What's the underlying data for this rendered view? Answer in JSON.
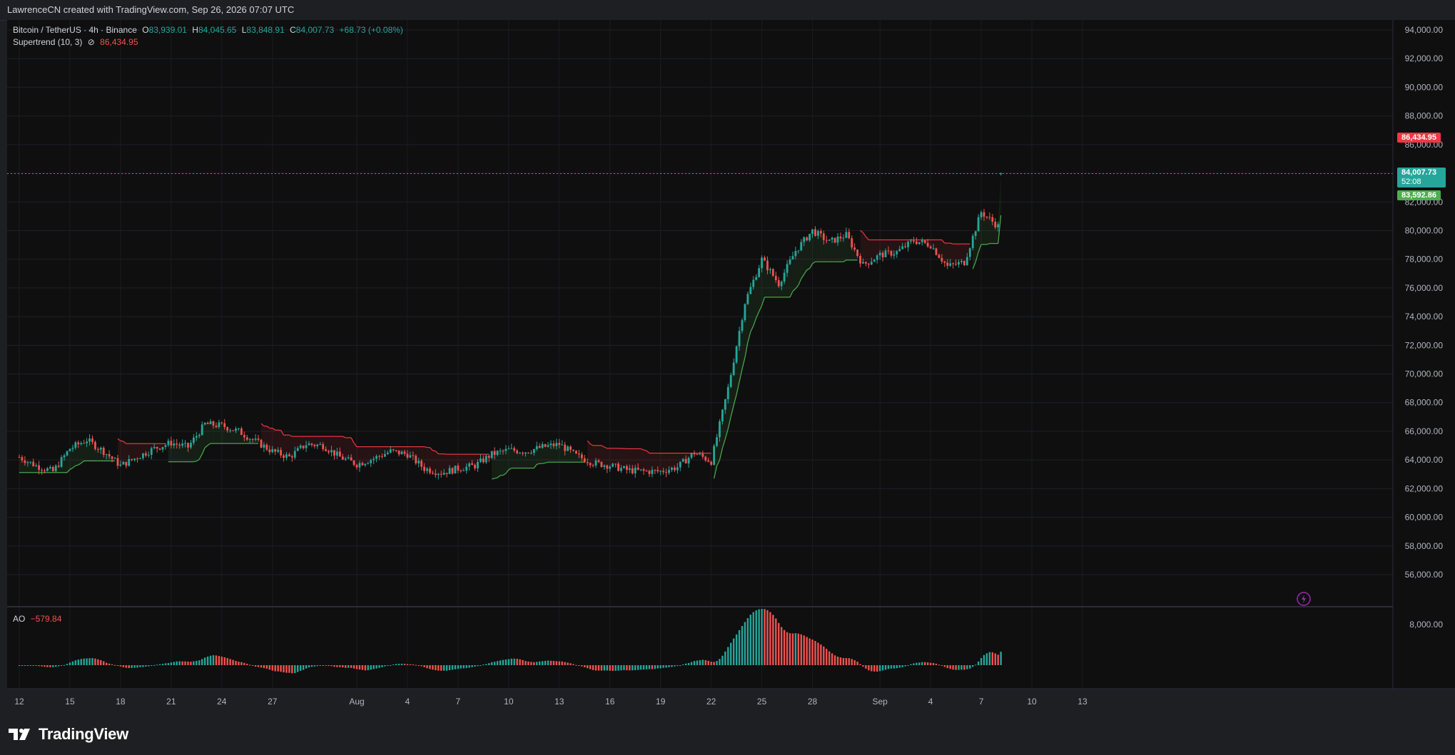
{
  "caption": "LawrenceCN created with TradingView.com, Sep 26, 2026 07:07 UTC",
  "legend": {
    "symbol": "Bitcoin / TetherUS · 4h · Binance",
    "o_label": "O",
    "o_value": "83,939.01",
    "h_label": "H",
    "h_value": "84,045.65",
    "l_label": "L",
    "l_value": "83,848.91",
    "c_label": "C",
    "c_value": "84,007.73",
    "change": "+68.73 (+0.08%)",
    "indicator": "Supertrend (10, 3)",
    "indicator_icon": "eye-off-icon",
    "indicator_value": "86,434.95"
  },
  "ao_legend": {
    "name": "AO",
    "value": "−579.84"
  },
  "price_tags": {
    "supertrend_upper": "86,434.95",
    "last_price": "84,007.73",
    "countdown": "52:08",
    "supertrend_lower": "83,592.86"
  },
  "brand": "TradingView",
  "colors": {
    "up": "#26a69a",
    "down": "#ef5350",
    "st_up": "#4caf50",
    "st_down": "#f23645",
    "background": "#0f0f0f"
  },
  "chart_data": {
    "type": "candlestick",
    "symbol": "Bitcoin / TetherUS",
    "interval": "4h",
    "exchange": "Binance",
    "y_ticks": [
      "94,000.00",
      "92,000.00",
      "90,000.00",
      "88,000.00",
      "86,000.00",
      "84,000.00",
      "82,000.00",
      "80,000.00",
      "78,000.00",
      "76,000.00",
      "74,000.00",
      "72,000.00",
      "70,000.00",
      "68,000.00",
      "66,000.00",
      "64,000.00",
      "62,000.00",
      "60,000.00",
      "58,000.00",
      "56,000.00"
    ],
    "x_ticks": [
      "12",
      "15",
      "18",
      "21",
      "24",
      "27",
      "Aug",
      "4",
      "7",
      "10",
      "13",
      "16",
      "19",
      "22",
      "25",
      "28",
      "Sep",
      "4",
      "7",
      "10",
      "13"
    ],
    "ylim": [
      54500,
      94500
    ],
    "close_path_days": [
      0,
      1,
      2,
      3,
      4,
      5,
      6,
      7,
      8,
      9,
      10,
      11,
      12,
      13,
      14,
      15,
      16,
      17,
      18,
      19,
      20,
      21,
      22,
      23,
      24,
      25,
      26,
      27,
      28,
      29,
      30,
      31,
      32,
      33,
      34,
      35,
      36,
      37,
      38,
      39,
      40,
      41,
      42,
      43,
      44,
      45,
      46,
      47,
      48,
      49,
      50,
      51,
      52,
      53,
      54,
      55,
      56,
      57,
      58,
      59,
      60,
      61,
      62,
      63,
      64,
      65,
      66,
      67,
      68,
      69,
      70,
      71,
      72,
      73,
      74
    ],
    "close_path": [
      64200,
      63600,
      63200,
      64800,
      65400,
      64600,
      63600,
      64200,
      64800,
      65200,
      64900,
      66500,
      66400,
      66000,
      65300,
      64600,
      64200,
      65100,
      65000,
      64200,
      63700,
      64100,
      64600,
      64400,
      63400,
      63100,
      63400,
      63600,
      64400,
      64700,
      64600,
      64900,
      65100,
      64300,
      63800,
      63600,
      63300,
      63200,
      63200,
      63500,
      64500,
      63900,
      69000,
      75000,
      78000,
      76300,
      78600,
      80000,
      79200,
      79700,
      77600,
      78300,
      78500,
      79300,
      79000,
      77500,
      77800,
      81300,
      80300,
      79900,
      79800,
      79000,
      78500,
      78600,
      77900,
      77300,
      77600,
      77400,
      78500,
      77300,
      77100,
      78700,
      81200,
      81400,
      84000
    ],
    "supertrend": {
      "upper_last": 86434.95,
      "lower_last": 83592.86
    },
    "ao": {
      "name": "AO",
      "last": -579.84,
      "ytick": "8,000.00"
    }
  }
}
